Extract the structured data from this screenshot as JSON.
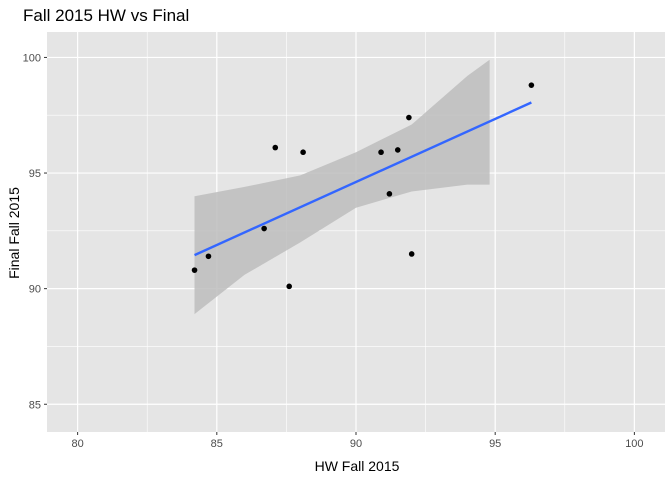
{
  "chart_data": {
    "type": "scatter",
    "title": "Fall 2015 HW vs Final",
    "xlabel": "HW Fall 2015",
    "ylabel": "Final Fall 2015",
    "xlim": [
      78.9,
      101.1
    ],
    "ylim": [
      83.8,
      101.1
    ],
    "xticks": [
      "80",
      "85",
      "90",
      "95",
      "100"
    ],
    "yticks": [
      "85",
      "90",
      "95",
      "100"
    ],
    "grid": true,
    "points": [
      {
        "x": 84.2,
        "y": 90.8
      },
      {
        "x": 84.7,
        "y": 91.4
      },
      {
        "x": 86.7,
        "y": 92.6
      },
      {
        "x": 87.1,
        "y": 96.1
      },
      {
        "x": 87.6,
        "y": 90.1
      },
      {
        "x": 88.1,
        "y": 95.9
      },
      {
        "x": 90.9,
        "y": 95.9
      },
      {
        "x": 91.2,
        "y": 94.1
      },
      {
        "x": 91.5,
        "y": 96.0
      },
      {
        "x": 91.9,
        "y": 97.4
      },
      {
        "x": 92.0,
        "y": 91.5
      },
      {
        "x": 96.3,
        "y": 98.8
      }
    ],
    "fit_line": {
      "x": [
        84.2,
        96.3
      ],
      "y": [
        91.45,
        98.05
      ],
      "color": "#3366ff"
    },
    "confidence_band": {
      "x": [
        84.2,
        86.0,
        88.0,
        90.0,
        92.0,
        94.0,
        94.8
      ],
      "upper": [
        94.0,
        94.4,
        94.9,
        95.9,
        97.1,
        99.2,
        99.9
      ],
      "lower": [
        88.9,
        90.6,
        92.0,
        93.5,
        94.2,
        94.5,
        94.5
      ],
      "color": "#bdbdbd"
    },
    "colors": {
      "panel": "#e5e5e5",
      "grid": "#ffffff",
      "point": "#000000"
    }
  }
}
